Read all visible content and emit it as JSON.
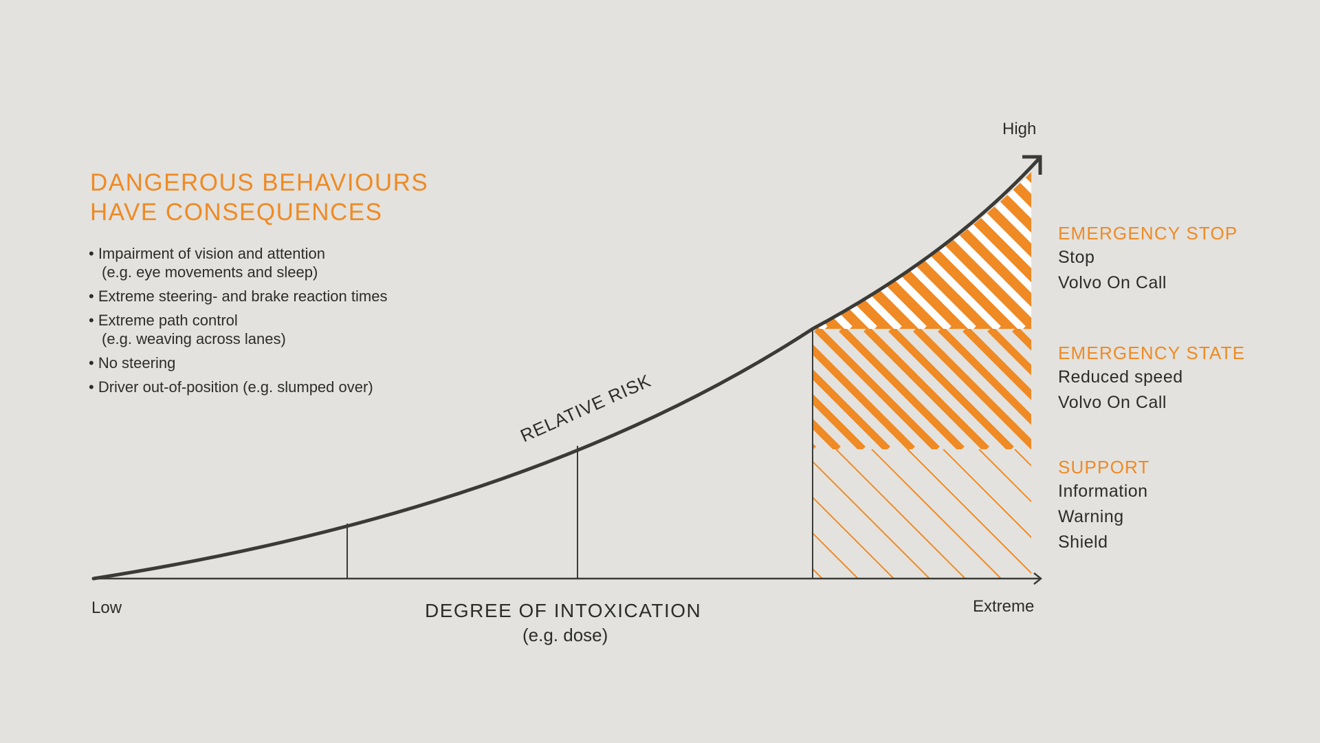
{
  "heading": {
    "line1": "DANGEROUS BEHAVIOURS",
    "line2": "HAVE CONSEQUENCES"
  },
  "bullets": [
    {
      "line1": "• Impairment of vision and attention",
      "line2": "(e.g. eye movements and sleep)"
    },
    {
      "line1": "• Extreme steering- and brake reaction times",
      "line2": ""
    },
    {
      "line1": "• Extreme path control",
      "line2": "(e.g. weaving across lanes)"
    },
    {
      "line1": "• No steering",
      "line2": ""
    },
    {
      "line1": "• Driver out-of-position (e.g. slumped over)",
      "line2": ""
    }
  ],
  "axes": {
    "y_high_label": "High",
    "x_low_label": "Low",
    "x_high_label": "Extreme",
    "x_title": "DEGREE OF INTOXICATION",
    "x_subtitle": "(e.g. dose)",
    "curve_label": "RELATIVE RISK"
  },
  "zones": {
    "emergency_stop": {
      "title": "EMERGENCY STOP",
      "items": [
        "Stop",
        "Volvo On Call"
      ]
    },
    "emergency_state": {
      "title": "EMERGENCY STATE",
      "items": [
        "Reduced speed",
        "Volvo On Call"
      ]
    },
    "support": {
      "title": "SUPPORT",
      "items": [
        "Information",
        "Warning",
        "Shield"
      ]
    }
  },
  "colors": {
    "accent": "#ef8a24",
    "ink": "#3a3a37",
    "background": "#e3e2de"
  }
}
